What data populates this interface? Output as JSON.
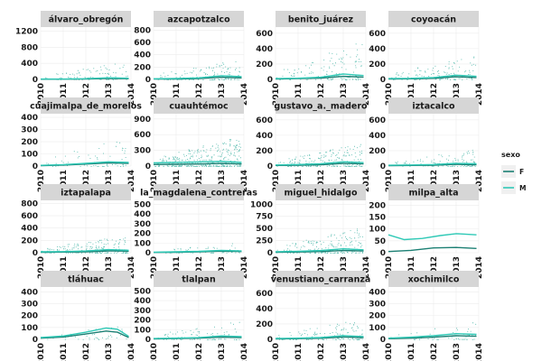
{
  "chart_data": {
    "type": "scatter",
    "facet_layout": "4x4",
    "x_ticks": [
      "2010",
      "2011",
      "2012",
      "2013",
      "2014"
    ],
    "xlim": [
      2010,
      2014
    ],
    "legend": {
      "title": "sexo",
      "placement": "right",
      "entries": [
        {
          "label": "F",
          "color": "#1b7f73"
        },
        {
          "label": "M",
          "color": "#2fc9b6"
        }
      ]
    },
    "colors": {
      "point": "#1aa392",
      "strip": "#d6d6d6",
      "panel": "#ffffff",
      "grid": "#ececec"
    },
    "panels": [
      {
        "name": "álvaro_obregón",
        "yticks": [
          0,
          400,
          800,
          1200
        ],
        "ylim": [
          0,
          1300
        ],
        "density": 0.16,
        "peak": 0.35,
        "F": [
          [
            2010,
            4
          ],
          [
            2011,
            6
          ],
          [
            2012,
            10
          ],
          [
            2013,
            25
          ],
          [
            2013.9,
            18
          ]
        ],
        "M": [
          [
            2010,
            8
          ],
          [
            2011,
            10
          ],
          [
            2012,
            18
          ],
          [
            2013,
            40
          ],
          [
            2013.9,
            30
          ]
        ]
      },
      {
        "name": "azcapotzalco",
        "yticks": [
          0,
          200,
          400,
          600,
          800
        ],
        "ylim": [
          0,
          850
        ],
        "density": 0.22,
        "peak": 0.4,
        "F": [
          [
            2010,
            6
          ],
          [
            2011,
            8
          ],
          [
            2012,
            15
          ],
          [
            2013,
            35
          ],
          [
            2013.9,
            25
          ]
        ],
        "M": [
          [
            2010,
            10
          ],
          [
            2011,
            14
          ],
          [
            2012,
            25
          ],
          [
            2013,
            60
          ],
          [
            2013.9,
            45
          ]
        ]
      },
      {
        "name": "benito_juárez",
        "yticks": [
          0,
          200,
          400,
          600
        ],
        "ylim": [
          0,
          680
        ],
        "density": 0.2,
        "peak": 0.75,
        "F": [
          [
            2010,
            6
          ],
          [
            2011,
            10
          ],
          [
            2012,
            18
          ],
          [
            2013,
            40
          ],
          [
            2013.9,
            30
          ]
        ],
        "M": [
          [
            2010,
            10
          ],
          [
            2011,
            15
          ],
          [
            2012,
            28
          ],
          [
            2013,
            70
          ],
          [
            2013.9,
            50
          ]
        ]
      },
      {
        "name": "coyoacán",
        "yticks": [
          0,
          200,
          400,
          600
        ],
        "ylim": [
          0,
          680
        ],
        "density": 0.2,
        "peak": 0.5,
        "F": [
          [
            2010,
            6
          ],
          [
            2011,
            8
          ],
          [
            2012,
            14
          ],
          [
            2013,
            35
          ],
          [
            2013.9,
            25
          ]
        ],
        "M": [
          [
            2010,
            10
          ],
          [
            2011,
            14
          ],
          [
            2012,
            25
          ],
          [
            2013,
            55
          ],
          [
            2013.9,
            40
          ]
        ]
      },
      {
        "name": "cuajimalpa_de_morelos",
        "yticks": [
          0,
          100,
          200,
          300,
          400
        ],
        "ylim": [
          0,
          430
        ],
        "density": 0.1,
        "peak": 0.6,
        "F": [
          [
            2010,
            4
          ],
          [
            2011,
            8
          ],
          [
            2012,
            16
          ],
          [
            2013,
            26
          ],
          [
            2013.9,
            22
          ]
        ],
        "M": [
          [
            2010,
            6
          ],
          [
            2011,
            12
          ],
          [
            2012,
            22
          ],
          [
            2013,
            35
          ],
          [
            2013.9,
            30
          ]
        ]
      },
      {
        "name": "cuauhtémoc",
        "yticks": [
          0,
          300,
          600,
          900
        ],
        "ylim": [
          0,
          1000
        ],
        "density": 0.55,
        "peak": 0.6,
        "F": [
          [
            2010,
            30
          ],
          [
            2011,
            35
          ],
          [
            2012,
            40
          ],
          [
            2013,
            50
          ],
          [
            2013.9,
            40
          ]
        ],
        "M": [
          [
            2010,
            60
          ],
          [
            2011,
            70
          ],
          [
            2012,
            80
          ],
          [
            2013,
            90
          ],
          [
            2013.9,
            70
          ]
        ]
      },
      {
        "name": "gustavo_a._madero",
        "yticks": [
          0,
          200,
          400,
          600
        ],
        "ylim": [
          0,
          680
        ],
        "density": 0.3,
        "peak": 0.45,
        "F": [
          [
            2010,
            8
          ],
          [
            2011,
            12
          ],
          [
            2012,
            18
          ],
          [
            2013,
            35
          ],
          [
            2013.9,
            28
          ]
        ],
        "M": [
          [
            2010,
            14
          ],
          [
            2011,
            20
          ],
          [
            2012,
            30
          ],
          [
            2013,
            55
          ],
          [
            2013.9,
            45
          ]
        ]
      },
      {
        "name": "iztacalco",
        "yticks": [
          0,
          200,
          400,
          600
        ],
        "ylim": [
          0,
          680
        ],
        "density": 0.18,
        "peak": 0.35,
        "F": [
          [
            2010,
            5
          ],
          [
            2011,
            8
          ],
          [
            2012,
            12
          ],
          [
            2013,
            22
          ],
          [
            2013.9,
            18
          ]
        ],
        "M": [
          [
            2010,
            10
          ],
          [
            2011,
            14
          ],
          [
            2012,
            20
          ],
          [
            2013,
            35
          ],
          [
            2013.9,
            30
          ]
        ]
      },
      {
        "name": "iztapalapa",
        "yticks": [
          0,
          200,
          400,
          600,
          800
        ],
        "ylim": [
          0,
          850
        ],
        "density": 0.28,
        "peak": 0.35,
        "F": [
          [
            2010,
            8
          ],
          [
            2011,
            10
          ],
          [
            2012,
            15
          ],
          [
            2013,
            30
          ],
          [
            2013.9,
            25
          ]
        ],
        "M": [
          [
            2010,
            14
          ],
          [
            2011,
            18
          ],
          [
            2012,
            28
          ],
          [
            2013,
            50
          ],
          [
            2013.9,
            40
          ]
        ]
      },
      {
        "name": "la_magdalena_contreras",
        "yticks": [
          0,
          100,
          200,
          300,
          400,
          500
        ],
        "ylim": [
          0,
          540
        ],
        "density": 0.08,
        "peak": 0.2,
        "F": [
          [
            2010,
            3
          ],
          [
            2011,
            5
          ],
          [
            2012,
            8
          ],
          [
            2013,
            16
          ],
          [
            2013.9,
            12
          ]
        ],
        "M": [
          [
            2010,
            6
          ],
          [
            2011,
            9
          ],
          [
            2012,
            14
          ],
          [
            2013,
            24
          ],
          [
            2013.9,
            18
          ]
        ]
      },
      {
        "name": "miguel_hidalgo",
        "yticks": [
          0,
          250,
          500,
          750,
          1000
        ],
        "ylim": [
          0,
          1080
        ],
        "density": 0.3,
        "peak": 0.5,
        "F": [
          [
            2010,
            10
          ],
          [
            2011,
            15
          ],
          [
            2012,
            25
          ],
          [
            2013,
            45
          ],
          [
            2013.9,
            35
          ]
        ],
        "M": [
          [
            2010,
            20
          ],
          [
            2011,
            30
          ],
          [
            2012,
            45
          ],
          [
            2013,
            80
          ],
          [
            2013.9,
            60
          ]
        ]
      },
      {
        "name": "milpa_alta",
        "yticks": [
          0,
          50,
          100,
          150,
          200
        ],
        "ylim": [
          0,
          220
        ],
        "density": 0.0,
        "peak": 0.0,
        "F": [
          [
            2010,
            5
          ],
          [
            2011,
            10
          ],
          [
            2012,
            20
          ],
          [
            2013,
            22
          ],
          [
            2013.9,
            18
          ]
        ],
        "M": [
          [
            2010,
            75
          ],
          [
            2010.7,
            55
          ],
          [
            2011.5,
            60
          ],
          [
            2012.3,
            72
          ],
          [
            2013,
            80
          ],
          [
            2013.9,
            75
          ]
        ]
      },
      {
        "name": "tláhuac",
        "yticks": [
          0,
          100,
          200,
          300,
          400
        ],
        "ylim": [
          0,
          440
        ],
        "density": 0.06,
        "peak": 0.3,
        "F": [
          [
            2010,
            10
          ],
          [
            2011,
            20
          ],
          [
            2012,
            45
          ],
          [
            2012.9,
            70
          ],
          [
            2013.4,
            60
          ],
          [
            2013.9,
            15
          ]
        ],
        "M": [
          [
            2010,
            15
          ],
          [
            2011,
            28
          ],
          [
            2012,
            60
          ],
          [
            2012.9,
            95
          ],
          [
            2013.4,
            85
          ],
          [
            2013.9,
            25
          ]
        ]
      },
      {
        "name": "tlalpan",
        "yticks": [
          0,
          100,
          200,
          300,
          400,
          500
        ],
        "ylim": [
          0,
          540
        ],
        "density": 0.14,
        "peak": 0.4,
        "F": [
          [
            2010,
            5
          ],
          [
            2011,
            8
          ],
          [
            2012,
            12
          ],
          [
            2013,
            22
          ],
          [
            2013.9,
            18
          ]
        ],
        "M": [
          [
            2010,
            8
          ],
          [
            2011,
            12
          ],
          [
            2012,
            18
          ],
          [
            2013,
            35
          ],
          [
            2013.9,
            28
          ]
        ]
      },
      {
        "name": "venustiano_carranza",
        "yticks": [
          0,
          200,
          400,
          600
        ],
        "ylim": [
          0,
          680
        ],
        "density": 0.2,
        "peak": 0.4,
        "F": [
          [
            2010,
            6
          ],
          [
            2011,
            9
          ],
          [
            2012,
            14
          ],
          [
            2013,
            30
          ],
          [
            2013.9,
            22
          ]
        ],
        "M": [
          [
            2010,
            10
          ],
          [
            2011,
            15
          ],
          [
            2012,
            24
          ],
          [
            2013,
            48
          ],
          [
            2013.9,
            36
          ]
        ]
      },
      {
        "name": "xochimilco",
        "yticks": [
          0,
          100,
          200,
          300,
          400
        ],
        "ylim": [
          0,
          440
        ],
        "density": 0.08,
        "peak": 0.35,
        "F": [
          [
            2010,
            5
          ],
          [
            2011,
            10
          ],
          [
            2012,
            18
          ],
          [
            2013,
            30
          ],
          [
            2013.9,
            26
          ]
        ],
        "M": [
          [
            2010,
            10
          ],
          [
            2011,
            18
          ],
          [
            2012,
            30
          ],
          [
            2013,
            48
          ],
          [
            2013.9,
            42
          ]
        ]
      }
    ]
  }
}
